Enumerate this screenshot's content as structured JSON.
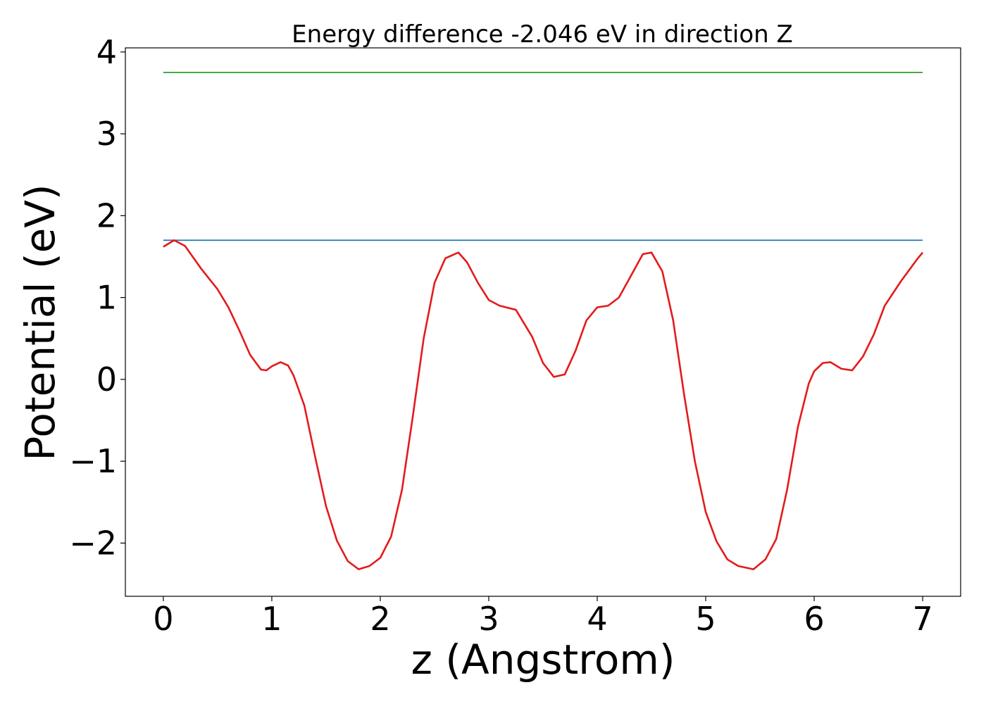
{
  "chart_data": {
    "type": "line",
    "title": "Energy difference -2.046 eV in direction Z",
    "xlabel": "z (Angstrom)",
    "ylabel": "Potential (eV)",
    "xlim": [
      -0.35,
      7.35
    ],
    "ylim": [
      -2.65,
      4.05
    ],
    "xticks": [
      {
        "value": 0,
        "label": "0"
      },
      {
        "value": 1,
        "label": "1"
      },
      {
        "value": 2,
        "label": "2"
      },
      {
        "value": 3,
        "label": "3"
      },
      {
        "value": 4,
        "label": "4"
      },
      {
        "value": 5,
        "label": "5"
      },
      {
        "value": 6,
        "label": "6"
      },
      {
        "value": 7,
        "label": "7"
      }
    ],
    "yticks": [
      {
        "value": -2,
        "label": "−2"
      },
      {
        "value": -1,
        "label": "−1"
      },
      {
        "value": 0,
        "label": "0"
      },
      {
        "value": 1,
        "label": "1"
      },
      {
        "value": 2,
        "label": "2"
      },
      {
        "value": 3,
        "label": "3"
      },
      {
        "value": 4,
        "label": "4"
      }
    ],
    "grid": false,
    "legend": "none",
    "series": [
      {
        "color": "#2ca02c",
        "x": [
          0,
          7
        ],
        "y": [
          3.75,
          3.75
        ]
      },
      {
        "color": "#1f77b4",
        "x": [
          0,
          7
        ],
        "y": [
          1.7,
          1.7
        ]
      },
      {
        "color": "#e41a1c",
        "x": [
          0,
          0.1,
          0.2,
          0.35,
          0.5,
          0.6,
          0.7,
          0.8,
          0.9,
          0.95,
          1.0,
          1.08,
          1.15,
          1.2,
          1.3,
          1.4,
          1.5,
          1.6,
          1.7,
          1.8,
          1.9,
          2.0,
          2.1,
          2.2,
          2.3,
          2.4,
          2.5,
          2.6,
          2.72,
          2.8,
          2.9,
          3.0,
          3.1,
          3.25,
          3.4,
          3.5,
          3.6,
          3.7,
          3.8,
          3.9,
          4.0,
          4.1,
          4.2,
          4.3,
          4.42,
          4.5,
          4.6,
          4.7,
          4.8,
          4.9,
          5.0,
          5.1,
          5.2,
          5.3,
          5.44,
          5.55,
          5.65,
          5.75,
          5.85,
          5.95,
          6.0,
          6.08,
          6.15,
          6.25,
          6.35,
          6.45,
          6.55,
          6.65,
          6.8,
          6.95,
          7.0
        ],
        "y": [
          1.62,
          1.7,
          1.63,
          1.35,
          1.1,
          0.88,
          0.6,
          0.3,
          0.12,
          0.11,
          0.16,
          0.21,
          0.17,
          0.05,
          -0.32,
          -0.95,
          -1.55,
          -1.97,
          -2.22,
          -2.32,
          -2.28,
          -2.18,
          -1.92,
          -1.35,
          -0.45,
          0.5,
          1.18,
          1.48,
          1.55,
          1.43,
          1.18,
          0.97,
          0.9,
          0.85,
          0.52,
          0.2,
          0.03,
          0.06,
          0.35,
          0.72,
          0.88,
          0.9,
          1.0,
          1.24,
          1.53,
          1.55,
          1.32,
          0.72,
          -0.18,
          -1.0,
          -1.62,
          -1.98,
          -2.2,
          -2.28,
          -2.32,
          -2.2,
          -1.95,
          -1.35,
          -0.58,
          -0.05,
          0.1,
          0.2,
          0.21,
          0.13,
          0.11,
          0.28,
          0.55,
          0.9,
          1.2,
          1.47,
          1.55
        ]
      }
    ]
  }
}
